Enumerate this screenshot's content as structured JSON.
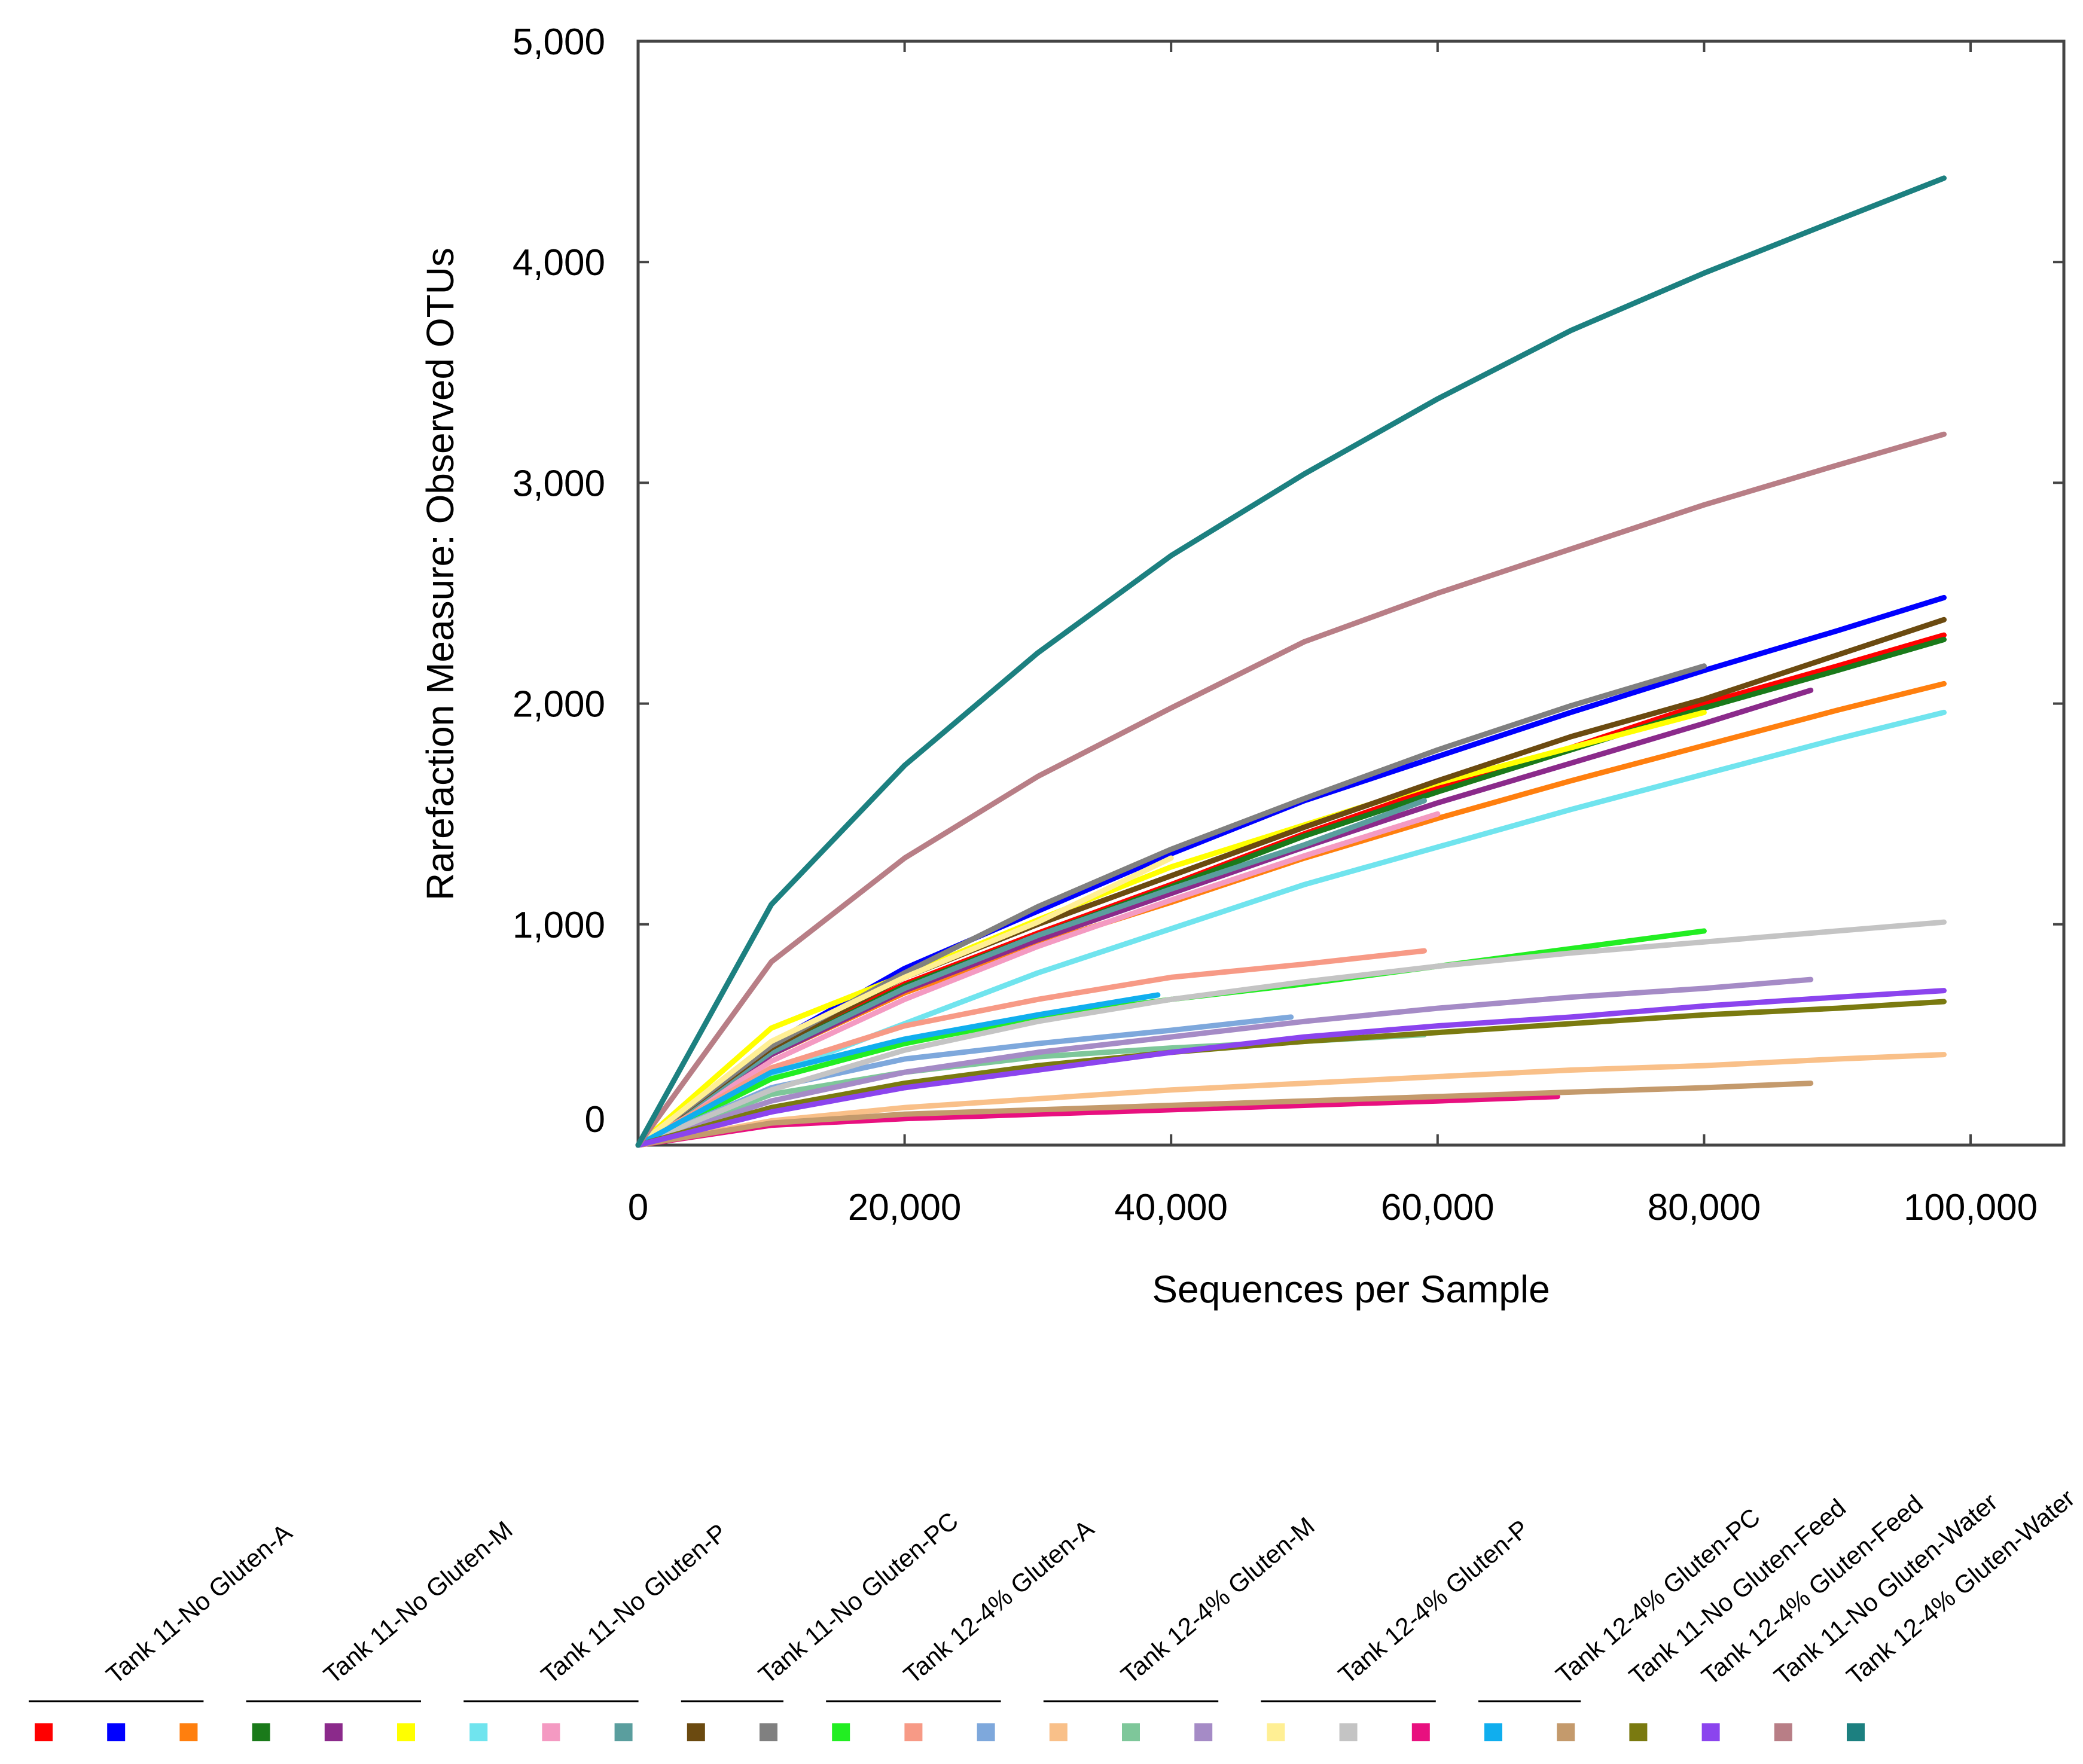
{
  "chart_data": {
    "type": "line",
    "title": "",
    "xlabel": "Sequences per Sample",
    "ylabel": "Rarefaction Measure: Observed OTUs",
    "xlim": [
      0,
      107000
    ],
    "ylim": [
      0,
      5000
    ],
    "x_ticks": [
      0,
      20000,
      40000,
      60000,
      80000,
      100000
    ],
    "x_tick_labels": [
      "0",
      "20,000",
      "40,000",
      "60,000",
      "80,000",
      "100,000"
    ],
    "y_ticks": [
      0,
      1000,
      2000,
      3000,
      4000,
      5000
    ],
    "y_tick_labels": [
      "0",
      "1,000",
      "2,000",
      "3,000",
      "4,000",
      "5,000"
    ],
    "grid": false,
    "legend_position": "bottom",
    "legend_groups": [
      {
        "label": "Tank 11-No Gluten-A",
        "swatches": [
          0,
          1,
          2
        ]
      },
      {
        "label": "Tank 11-No Gluten-M",
        "swatches": [
          3,
          4,
          5
        ]
      },
      {
        "label": "Tank 11-No Gluten-P",
        "swatches": [
          6,
          7,
          8
        ]
      },
      {
        "label": "Tank 11-No Gluten-PC",
        "swatches": [
          9,
          10
        ]
      },
      {
        "label": "Tank 12-4% Gluten-A",
        "swatches": [
          11,
          12,
          13
        ]
      },
      {
        "label": "Tank 12-4% Gluten-M",
        "swatches": [
          14,
          15,
          16
        ]
      },
      {
        "label": "Tank 12-4% Gluten-P",
        "swatches": [
          17,
          18,
          19
        ]
      },
      {
        "label": "Tank 12-4% Gluten-PC",
        "swatches": [
          20,
          21
        ]
      },
      {
        "label": "Tank 11-No Gluten-Feed",
        "swatches": [
          22
        ]
      },
      {
        "label": "Tank 12-4% Gluten-Feed",
        "swatches": [
          23
        ]
      },
      {
        "label": "Tank 11-No Gluten-Water",
        "swatches": [
          24
        ]
      },
      {
        "label": "Tank 12-4% Gluten-Water",
        "swatches": [
          25
        ]
      }
    ],
    "series": [
      {
        "color": "#ff0000",
        "x": [
          0,
          10000,
          20000,
          30000,
          40000,
          50000,
          60000,
          70000,
          80000,
          90000,
          98000
        ],
        "values": [
          0,
          430,
          730,
          960,
          1180,
          1410,
          1620,
          1800,
          2000,
          2170,
          2310
        ]
      },
      {
        "color": "#0000ff",
        "x": [
          0,
          10000,
          20000,
          30000,
          40000,
          50000,
          60000,
          70000,
          80000,
          90000,
          98000
        ],
        "values": [
          0,
          460,
          800,
          1060,
          1320,
          1560,
          1760,
          1960,
          2150,
          2330,
          2480
        ]
      },
      {
        "color": "#ff7f0e",
        "x": [
          0,
          10000,
          20000,
          30000,
          40000,
          50000,
          60000,
          70000,
          80000,
          90000,
          98000
        ],
        "values": [
          0,
          410,
          690,
          910,
          1100,
          1300,
          1480,
          1650,
          1810,
          1970,
          2090
        ]
      },
      {
        "color": "#1a7a1a",
        "x": [
          0,
          10000,
          20000,
          30000,
          40000,
          50000,
          60000,
          70000,
          80000,
          90000,
          98000
        ],
        "values": [
          0,
          420,
          720,
          950,
          1170,
          1400,
          1600,
          1790,
          1980,
          2150,
          2290
        ]
      },
      {
        "color": "#8b2a8b",
        "x": [
          0,
          10000,
          20000,
          30000,
          40000,
          50000,
          60000,
          70000,
          80000,
          88000
        ],
        "values": [
          0,
          410,
          700,
          930,
          1140,
          1350,
          1550,
          1730,
          1910,
          2060
        ]
      },
      {
        "color": "#ffff00",
        "x": [
          0,
          10000,
          20000,
          30000,
          40000,
          50000,
          60000,
          70000,
          80000
        ],
        "values": [
          0,
          530,
          770,
          1020,
          1260,
          1450,
          1640,
          1800,
          1960
        ]
      },
      {
        "color": "#70e4ee",
        "x": [
          0,
          10000,
          20000,
          30000,
          40000,
          50000,
          60000,
          70000,
          80000,
          90000,
          98000
        ],
        "values": [
          0,
          320,
          550,
          780,
          980,
          1180,
          1350,
          1520,
          1680,
          1840,
          1960
        ]
      },
      {
        "color": "#f49ac2",
        "x": [
          0,
          10000,
          20000,
          30000,
          40000,
          50000,
          60000
        ],
        "values": [
          0,
          380,
          660,
          900,
          1110,
          1310,
          1500
        ]
      },
      {
        "color": "#5a9e9e",
        "x": [
          0,
          10000,
          20000,
          30000,
          40000,
          50000,
          59000
        ],
        "values": [
          0,
          420,
          710,
          950,
          1160,
          1360,
          1560
        ]
      },
      {
        "color": "#6b4a10",
        "x": [
          0,
          10000,
          20000,
          30000,
          40000,
          50000,
          60000,
          70000,
          80000,
          90000,
          98000
        ],
        "values": [
          0,
          440,
          760,
          1000,
          1220,
          1440,
          1650,
          1850,
          2020,
          2220,
          2380
        ]
      },
      {
        "color": "#808080",
        "x": [
          0,
          10000,
          20000,
          30000,
          40000,
          50000,
          60000,
          70000,
          80000
        ],
        "values": [
          0,
          450,
          780,
          1080,
          1340,
          1570,
          1790,
          1990,
          2170
        ]
      },
      {
        "color": "#22ee22",
        "x": [
          0,
          10000,
          20000,
          30000,
          40000,
          50000,
          60000,
          70000,
          80000
        ],
        "values": [
          0,
          300,
          460,
          580,
          660,
          730,
          810,
          890,
          970
        ]
      },
      {
        "color": "#f79a86",
        "x": [
          0,
          10000,
          20000,
          30000,
          40000,
          50000,
          59000
        ],
        "values": [
          0,
          350,
          540,
          660,
          760,
          820,
          880
        ]
      },
      {
        "color": "#7ea8dc",
        "x": [
          0,
          10000,
          20000,
          30000,
          40000,
          49000
        ],
        "values": [
          0,
          260,
          390,
          460,
          520,
          580
        ]
      },
      {
        "color": "#f9c089",
        "x": [
          0,
          10000,
          20000,
          30000,
          40000,
          50000,
          60000,
          70000,
          80000,
          90000,
          98000
        ],
        "values": [
          0,
          110,
          170,
          210,
          250,
          280,
          310,
          340,
          360,
          390,
          410
        ]
      },
      {
        "color": "#7ec79a",
        "x": [
          0,
          10000,
          20000,
          30000,
          40000,
          50000,
          59000
        ],
        "values": [
          0,
          230,
          330,
          400,
          440,
          470,
          500
        ]
      },
      {
        "color": "#a58bc6",
        "x": [
          0,
          10000,
          20000,
          30000,
          40000,
          50000,
          60000,
          70000,
          80000,
          88000
        ],
        "values": [
          0,
          200,
          330,
          420,
          490,
          560,
          620,
          670,
          710,
          750
        ]
      },
      {
        "color": "#ffef94",
        "x": [
          0,
          10000,
          20000,
          30000,
          40000
        ],
        "values": [
          0,
          470,
          760,
          1010,
          1300
        ]
      },
      {
        "color": "#c4c4c4",
        "x": [
          0,
          10000,
          20000,
          30000,
          40000,
          50000,
          60000,
          70000,
          80000,
          90000,
          98000
        ],
        "values": [
          0,
          250,
          430,
          560,
          660,
          740,
          810,
          870,
          920,
          970,
          1010
        ]
      },
      {
        "color": "#e8107f",
        "x": [
          0,
          10000,
          20000,
          30000,
          40000,
          50000,
          60000,
          69000
        ],
        "values": [
          0,
          90,
          120,
          140,
          160,
          180,
          200,
          220
        ]
      },
      {
        "color": "#10aeee",
        "x": [
          0,
          10000,
          20000,
          30000,
          39000
        ],
        "values": [
          0,
          330,
          480,
          590,
          680
        ]
      },
      {
        "color": "#c49a6c",
        "x": [
          0,
          10000,
          20000,
          30000,
          40000,
          50000,
          60000,
          70000,
          80000,
          88000
        ],
        "values": [
          0,
          100,
          140,
          160,
          180,
          200,
          220,
          240,
          260,
          280
        ]
      },
      {
        "color": "#7a7a10",
        "x": [
          0,
          10000,
          20000,
          30000,
          40000,
          50000,
          60000,
          70000,
          80000,
          90000,
          98000
        ],
        "values": [
          0,
          170,
          280,
          360,
          420,
          470,
          510,
          550,
          590,
          620,
          650
        ]
      },
      {
        "color": "#8b44ee",
        "x": [
          0,
          10000,
          20000,
          30000,
          40000,
          50000,
          60000,
          70000,
          80000,
          90000,
          98000
        ],
        "values": [
          0,
          150,
          260,
          340,
          420,
          490,
          540,
          580,
          630,
          670,
          700
        ]
      },
      {
        "color": "#b87e86",
        "x": [
          0,
          10000,
          20000,
          30000,
          40000,
          50000,
          60000,
          70000,
          80000,
          90000,
          98000
        ],
        "values": [
          0,
          830,
          1300,
          1670,
          1980,
          2280,
          2500,
          2700,
          2900,
          3080,
          3220
        ]
      },
      {
        "color": "#1c8080",
        "x": [
          0,
          10000,
          20000,
          30000,
          40000,
          50000,
          60000,
          70000,
          80000,
          90000,
          98000
        ],
        "values": [
          0,
          1090,
          1720,
          2230,
          2670,
          3040,
          3380,
          3690,
          3950,
          4190,
          4380
        ]
      }
    ]
  }
}
